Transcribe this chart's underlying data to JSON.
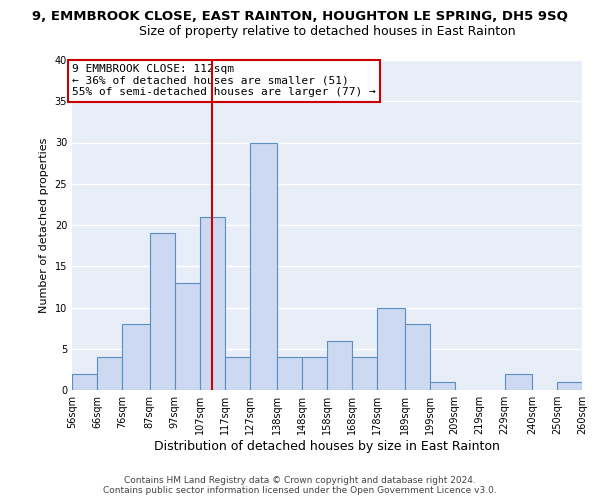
{
  "title_line1": "9, EMMBROOK CLOSE, EAST RAINTON, HOUGHTON LE SPRING, DH5 9SQ",
  "title_line2": "Size of property relative to detached houses in East Rainton",
  "xlabel": "Distribution of detached houses by size in East Rainton",
  "ylabel": "Number of detached properties",
  "bar_color": "#ccd9f0",
  "bar_edge_color": "#5b8ec4",
  "background_color": "#e8eef8",
  "grid_color": "#ffffff",
  "bin_edges": [
    56,
    66,
    76,
    87,
    97,
    107,
    117,
    127,
    138,
    148,
    158,
    168,
    178,
    189,
    199,
    209,
    219,
    229,
    240,
    250,
    260
  ],
  "bin_labels": [
    "56sqm",
    "66sqm",
    "76sqm",
    "87sqm",
    "97sqm",
    "107sqm",
    "117sqm",
    "127sqm",
    "138sqm",
    "148sqm",
    "158sqm",
    "168sqm",
    "178sqm",
    "189sqm",
    "199sqm",
    "209sqm",
    "219sqm",
    "229sqm",
    "240sqm",
    "250sqm",
    "260sqm"
  ],
  "counts": [
    2,
    4,
    8,
    19,
    13,
    21,
    4,
    30,
    4,
    4,
    6,
    4,
    10,
    8,
    1,
    0,
    0,
    2,
    0,
    1
  ],
  "ylim": [
    0,
    40
  ],
  "yticks": [
    0,
    5,
    10,
    15,
    20,
    25,
    30,
    35,
    40
  ],
  "vline_x": 112,
  "vline_color": "#cc0000",
  "annotation_text": "9 EMMBROOK CLOSE: 112sqm\n← 36% of detached houses are smaller (51)\n55% of semi-detached houses are larger (77) →",
  "annotation_box_color": "#ffffff",
  "annotation_box_edge_color": "#cc0000",
  "footer_line1": "Contains HM Land Registry data © Crown copyright and database right 2024.",
  "footer_line2": "Contains public sector information licensed under the Open Government Licence v3.0.",
  "title_fontsize": 9.5,
  "subtitle_fontsize": 9,
  "xlabel_fontsize": 9,
  "ylabel_fontsize": 8,
  "tick_fontsize": 7,
  "annotation_fontsize": 8,
  "footer_fontsize": 6.5
}
